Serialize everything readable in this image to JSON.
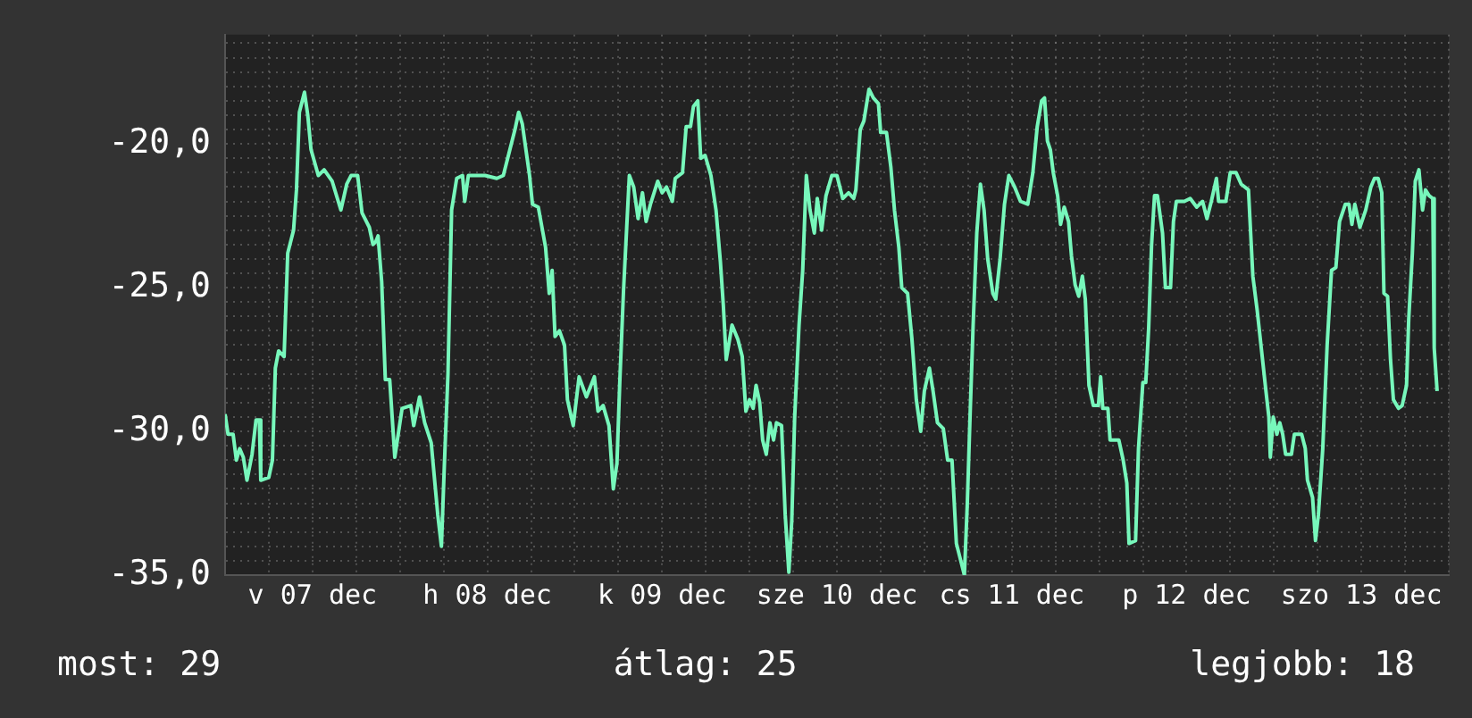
{
  "chart_data": {
    "type": "line",
    "legend": false,
    "grid": true,
    "marker": "none",
    "line_style": "solid",
    "xlim": [
      "--12-07T00:00",
      "--12-14T00:00"
    ],
    "xticks": [
      {
        "value": "--12-07T00:00",
        "label": null
      },
      {
        "value": "--12-07T06:00",
        "label": null
      },
      {
        "value": "--12-07T12:00",
        "label": "v 07 dec"
      },
      {
        "value": "--12-07T18:00",
        "label": null
      },
      {
        "value": "--12-08T00:00",
        "label": null
      },
      {
        "value": "--12-08T06:00",
        "label": null
      },
      {
        "value": "--12-08T12:00",
        "label": "h 08 dec"
      },
      {
        "value": "--12-08T18:00",
        "label": null
      },
      {
        "value": "--12-09T00:00",
        "label": null
      },
      {
        "value": "--12-09T06:00",
        "label": null
      },
      {
        "value": "--12-09T12:00",
        "label": "k 09 dec"
      },
      {
        "value": "--12-09T18:00",
        "label": null
      },
      {
        "value": "--12-10T00:00",
        "label": null
      },
      {
        "value": "--12-10T06:00",
        "label": null
      },
      {
        "value": "--12-10T12:00",
        "label": "sze 10 dec"
      },
      {
        "value": "--12-10T18:00",
        "label": null
      },
      {
        "value": "--12-11T00:00",
        "label": null
      },
      {
        "value": "--12-11T06:00",
        "label": null
      },
      {
        "value": "--12-11T12:00",
        "label": "cs 11 dec"
      },
      {
        "value": "--12-11T18:00",
        "label": null
      },
      {
        "value": "--12-12T00:00",
        "label": null
      },
      {
        "value": "--12-12T06:00",
        "label": null
      },
      {
        "value": "--12-12T12:00",
        "label": "p 12 dec"
      },
      {
        "value": "--12-12T18:00",
        "label": null
      },
      {
        "value": "--12-13T00:00",
        "label": null
      },
      {
        "value": "--12-13T06:00",
        "label": null
      },
      {
        "value": "--12-13T12:00",
        "label": "szo 13 dec"
      },
      {
        "value": "--12-13T18:00",
        "label": null
      },
      {
        "value": "--12-14T00:00",
        "label": null
      }
    ],
    "ylim": [
      -35,
      -16.2
    ],
    "yticks": [
      {
        "value": -35,
        "label": "-35,0"
      },
      {
        "value": -34.5,
        "label": null
      },
      {
        "value": -34,
        "label": null
      },
      {
        "value": -33.5,
        "label": null
      },
      {
        "value": -33,
        "label": null
      },
      {
        "value": -32.5,
        "label": null
      },
      {
        "value": -32,
        "label": null
      },
      {
        "value": -31.5,
        "label": null
      },
      {
        "value": -31,
        "label": null
      },
      {
        "value": -30.5,
        "label": null
      },
      {
        "value": -30,
        "label": "-30,0"
      },
      {
        "value": -29.5,
        "label": null
      },
      {
        "value": -29,
        "label": null
      },
      {
        "value": -28.5,
        "label": null
      },
      {
        "value": -28,
        "label": null
      },
      {
        "value": -27.5,
        "label": null
      },
      {
        "value": -27,
        "label": null
      },
      {
        "value": -26.5,
        "label": null
      },
      {
        "value": -26,
        "label": null
      },
      {
        "value": -25.5,
        "label": null
      },
      {
        "value": -25,
        "label": "-25,0"
      },
      {
        "value": -24.5,
        "label": null
      },
      {
        "value": -24,
        "label": null
      },
      {
        "value": -23.5,
        "label": null
      },
      {
        "value": -23,
        "label": null
      },
      {
        "value": -22.5,
        "label": null
      },
      {
        "value": -22,
        "label": null
      },
      {
        "value": -21.5,
        "label": null
      },
      {
        "value": -21,
        "label": null
      },
      {
        "value": -20.5,
        "label": null
      },
      {
        "value": -20,
        "label": "-20,0"
      },
      {
        "value": -19.5,
        "label": null
      },
      {
        "value": -19,
        "label": null
      },
      {
        "value": -18.5,
        "label": null
      },
      {
        "value": -18,
        "label": null
      },
      {
        "value": -17.5,
        "label": null
      },
      {
        "value": -17,
        "label": null
      },
      {
        "value": -16.5,
        "label": null
      }
    ],
    "annotations": [
      "most: 29",
      "átlag: 25",
      "legjobb: 18"
    ],
    "series": [
      {
        "color": "#77f7bb",
        "x": [
          "--12-07T00:00",
          "--12-07T00:24",
          "--12-07T01:06",
          "--12-07T01:33",
          "--12-07T02:00",
          "--12-07T02:30",
          "--12-07T03:00",
          "--12-07T03:42",
          "--12-07T04:15",
          "--12-07T04:42",
          "--12-07T04:54",
          "--12-07T06:00",
          "--12-07T06:30",
          "--12-07T06:54",
          "--12-07T07:21",
          "--12-07T08:06",
          "--12-07T08:36",
          "--12-07T09:24",
          "--12-07T09:48",
          "--12-07T10:12",
          "--12-07T10:54",
          "--12-07T11:21",
          "--12-07T11:48",
          "--12-07T12:48",
          "--12-07T13:36",
          "--12-07T14:42",
          "--12-07T15:54",
          "--12-07T16:42",
          "--12-07T17:18",
          "--12-07T18:12",
          "--12-07T18:48",
          "--12-07T19:48",
          "--12-07T20:18",
          "--12-07T20:42",
          "--12-07T21:00",
          "--12-07T21:30",
          "--12-07T22:00",
          "--12-07T22:36",
          "--12-07T23:18",
          "--12-08T00:18",
          "--12-08T01:30",
          "--12-08T01:54",
          "--12-08T02:42",
          "--12-08T03:24",
          "--12-08T04:18",
          "--12-08T05:12",
          "--12-08T05:42",
          "--12-08T06:06",
          "--12-08T06:36",
          "--12-08T07:06",
          "--12-08T07:48",
          "--12-08T08:36",
          "--12-08T08:54",
          "--12-08T09:24",
          "--12-08T10:30",
          "--12-08T11:42",
          "--12-08T13:18",
          "--12-08T14:12",
          "--12-08T15:06",
          "--12-08T15:48",
          "--12-08T16:18",
          "--12-08T16:48",
          "--12-08T17:48",
          "--12-08T18:12",
          "--12-08T19:00",
          "--12-08T20:00",
          "--12-08T20:30",
          "--12-08T20:54",
          "--12-08T21:18",
          "--12-08T21:54",
          "--12-08T22:36",
          "--12-08T23:00",
          "--12-08T23:48",
          "--12-09T00:36",
          "--12-09T01:36",
          "--12-09T02:42",
          "--12-09T03:12",
          "--12-09T03:54",
          "--12-09T04:42",
          "--12-09T05:18",
          "--12-09T05:48",
          "--12-09T06:12",
          "--12-09T06:42",
          "--12-09T07:30",
          "--12-09T08:06",
          "--12-09T08:42",
          "--12-09T09:18",
          "--12-09T09:48",
          "--12-09T10:24",
          "--12-09T11:24",
          "--12-09T12:00",
          "--12-09T12:36",
          "--12-09T13:24",
          "--12-09T13:48",
          "--12-09T14:48",
          "--12-09T15:18",
          "--12-09T15:54",
          "--12-09T16:18",
          "--12-09T16:54",
          "--12-09T17:18",
          "--12-09T17:54",
          "--12-09T18:42",
          "--12-09T19:24",
          "--12-09T20:00",
          "--12-09T20:24",
          "--12-09T20:48",
          "--12-09T21:36",
          "--12-09T22:24",
          "--12-09T23:00",
          "--12-09T23:30",
          "--12-10T00:00",
          "--12-10T00:30",
          "--12-10T00:54",
          "--12-10T01:24",
          "--12-10T01:48",
          "--12-10T02:18",
          "--12-10T02:48",
          "--12-10T03:18",
          "--12-10T03:42",
          "--12-10T04:24",
          "--12-10T04:54",
          "--12-10T05:24",
          "--12-10T05:48",
          "--12-10T06:12",
          "--12-10T06:48",
          "--12-10T07:18",
          "--12-10T07:48",
          "--12-10T08:18",
          "--12-10T08:54",
          "--12-10T09:18",
          "--12-10T09:54",
          "--12-10T10:30",
          "--12-10T11:18",
          "--12-10T12:00",
          "--12-10T12:48",
          "--12-10T13:36",
          "--12-10T14:18",
          "--12-10T14:36",
          "--12-10T15:12",
          "--12-10T15:42",
          "--12-10T16:24",
          "--12-10T17:00",
          "--12-10T17:42",
          "--12-10T18:00",
          "--12-10T18:48",
          "--12-10T19:24",
          "--12-10T19:54",
          "--12-10T20:30",
          "--12-10T20:54",
          "--12-10T21:42",
          "--12-10T22:18",
          "--12-10T22:54",
          "--12-10T23:30",
          "--12-11T00:00",
          "--12-11T00:42",
          "--12-11T01:12",
          "--12-11T01:48",
          "--12-11T02:36",
          "--12-11T03:12",
          "--12-11T03:48",
          "--12-11T04:24",
          "--12-11T05:06",
          "--12-11T05:30",
          "--12-11T05:54",
          "--12-11T06:18",
          "--12-11T06:42",
          "--12-11T07:12",
          "--12-11T07:42",
          "--12-11T08:12",
          "--12-11T08:42",
          "--12-11T09:24",
          "--12-11T09:48",
          "--12-11T10:24",
          "--12-11T11:00",
          "--12-11T11:36",
          "--12-11T12:24",
          "--12-11T13:12",
          "--12-11T14:12",
          "--12-11T14:54",
          "--12-11T15:30",
          "--12-11T16:06",
          "--12-11T16:30",
          "--12-11T16:54",
          "--12-11T17:18",
          "--12-11T17:42",
          "--12-11T18:18",
          "--12-11T18:42",
          "--12-11T19:12",
          "--12-11T19:48",
          "--12-11T20:12",
          "--12-11T20:42",
          "--12-11T21:12",
          "--12-11T21:42",
          "--12-11T22:06",
          "--12-11T22:36",
          "--12-11T23:12",
          "--12-11T23:54",
          "--12-12T00:12",
          "--12-12T00:30",
          "--12-12T01:12",
          "--12-12T01:30",
          "--12-12T02:42",
          "--12-12T03:18",
          "--12-12T03:48",
          "--12-12T04:06",
          "--12-12T05:00",
          "--12-12T05:24",
          "--12-12T06:00",
          "--12-12T06:24",
          "--12-12T06:48",
          "--12-12T07:12",
          "--12-12T07:36",
          "--12-12T08:00",
          "--12-12T08:42",
          "--12-12T09:06",
          "--12-12T09:48",
          "--12-12T10:12",
          "--12-12T10:36",
          "--12-12T11:42",
          "--12-12T12:30",
          "--12-12T13:24",
          "--12-12T14:12",
          "--12-12T14:48",
          "--12-12T15:24",
          "--12-12T16:06",
          "--12-12T16:24",
          "--12-12T17:24",
          "--12-12T18:00",
          "--12-12T18:48",
          "--12-12T19:30",
          "--12-12T20:30",
          "--12-12T21:06",
          "--12-12T21:42",
          "--12-12T22:18",
          "--12-12T22:54",
          "--12-12T23:18",
          "--12-12T23:30",
          "--12-12T23:54",
          "--12-13T00:24",
          "--12-13T00:48",
          "--12-13T01:12",
          "--12-13T01:36",
          "--12-13T02:24",
          "--12-13T02:48",
          "--12-13T03:48",
          "--12-13T04:18",
          "--12-13T04:36",
          "--12-13T05:18",
          "--12-13T05:42",
          "--12-13T06:06",
          "--12-13T06:42",
          "--12-13T07:18",
          "--12-13T07:54",
          "--12-13T08:30",
          "--12-13T09:00",
          "--12-13T09:48",
          "--12-13T10:18",
          "--12-13T10:42",
          "--12-13T11:06",
          "--12-13T11:48",
          "--12-13T12:36",
          "--12-13T13:18",
          "--12-13T13:48",
          "--12-13T14:18",
          "--12-13T14:48",
          "--12-13T15:06",
          "--12-13T15:36",
          "--12-13T16:00",
          "--12-13T16:24",
          "--12-13T17:06",
          "--12-13T17:36",
          "--12-13T18:12",
          "--12-13T18:30",
          "--12-13T19:00",
          "--12-13T19:24",
          "--12-13T19:54",
          "--12-13T20:24",
          "--12-13T20:48",
          "--12-13T21:18",
          "--12-13T21:48",
          "--12-13T22:00",
          "--12-13T22:24"
        ],
        "values": [
          -29.4,
          -30.1,
          -30.1,
          -31.0,
          -30.6,
          -30.9,
          -31.7,
          -30.8,
          -29.6,
          -29.6,
          -31.7,
          -31.6,
          -31.0,
          -27.8,
          -27.2,
          -27.4,
          -23.8,
          -23.0,
          -21.6,
          -18.9,
          -18.2,
          -19.0,
          -20.2,
          -21.1,
          -20.9,
          -21.3,
          -22.3,
          -21.4,
          -21.1,
          -21.1,
          -22.4,
          -22.9,
          -23.5,
          -23.4,
          -23.2,
          -24.8,
          -28.2,
          -28.2,
          -30.9,
          -29.2,
          -29.1,
          -29.8,
          -28.8,
          -29.7,
          -30.4,
          -32.9,
          -34.0,
          -31.2,
          -28.0,
          -22.3,
          -21.2,
          -21.1,
          -22.0,
          -21.1,
          -21.1,
          -21.1,
          -21.2,
          -21.1,
          -20.2,
          -19.5,
          -18.9,
          -19.3,
          -21.1,
          -22.1,
          -22.2,
          -23.6,
          -25.2,
          -24.4,
          -26.7,
          -26.5,
          -27.0,
          -28.9,
          -29.8,
          -28.1,
          -28.8,
          -28.1,
          -29.3,
          -29.1,
          -29.8,
          -32.0,
          -31.1,
          -28.2,
          -25.1,
          -21.1,
          -21.5,
          -22.6,
          -21.7,
          -22.7,
          -22.1,
          -21.3,
          -21.7,
          -21.5,
          -22.0,
          -21.2,
          -21.0,
          -19.4,
          -19.4,
          -18.7,
          -18.5,
          -20.5,
          -20.4,
          -21.1,
          -22.3,
          -24.1,
          -25.6,
          -27.5,
          -26.3,
          -26.8,
          -27.4,
          -29.3,
          -28.9,
          -29.2,
          -28.4,
          -29.0,
          -30.3,
          -30.8,
          -29.7,
          -30.3,
          -29.7,
          -29.8,
          -32.9,
          -34.9,
          -33.1,
          -29.5,
          -26.3,
          -24.4,
          -21.1,
          -22.3,
          -23.1,
          -21.9,
          -23.0,
          -21.8,
          -21.1,
          -21.1,
          -21.9,
          -21.7,
          -21.9,
          -21.6,
          -19.5,
          -19.2,
          -18.1,
          -18.4,
          -18.6,
          -19.6,
          -19.6,
          -20.8,
          -22.3,
          -23.6,
          -25.0,
          -25.2,
          -26.8,
          -28.9,
          -30.0,
          -28.6,
          -27.8,
          -28.6,
          -29.7,
          -29.9,
          -31.0,
          -31.0,
          -33.9,
          -34.6,
          -35.0,
          -32.5,
          -29.3,
          -26.3,
          -23.1,
          -21.4,
          -22.3,
          -24.0,
          -25.2,
          -25.4,
          -24.0,
          -22.1,
          -21.1,
          -21.5,
          -22.0,
          -22.1,
          -21.0,
          -19.4,
          -18.5,
          -18.4,
          -19.9,
          -20.2,
          -21.0,
          -21.8,
          -22.8,
          -22.2,
          -22.7,
          -23.9,
          -24.9,
          -25.3,
          -24.6,
          -25.4,
          -28.4,
          -29.1,
          -29.1,
          -28.1,
          -29.2,
          -29.2,
          -30.3,
          -30.3,
          -31.0,
          -31.8,
          -33.9,
          -33.8,
          -30.6,
          -28.3,
          -28.3,
          -26.4,
          -23.5,
          -21.8,
          -21.8,
          -23.1,
          -25.0,
          -25.0,
          -22.7,
          -22.0,
          -22.0,
          -21.9,
          -22.2,
          -22.0,
          -22.6,
          -22.0,
          -21.2,
          -22.0,
          -22.0,
          -21.0,
          -21.0,
          -21.4,
          -21.6,
          -24.6,
          -25.8,
          -27.2,
          -28.6,
          -29.5,
          -30.9,
          -29.5,
          -30.1,
          -29.7,
          -30.1,
          -30.8,
          -30.8,
          -30.1,
          -30.1,
          -30.6,
          -31.7,
          -32.3,
          -33.8,
          -32.9,
          -30.6,
          -27.0,
          -24.4,
          -24.3,
          -22.7,
          -22.1,
          -22.1,
          -22.8,
          -22.1,
          -22.9,
          -22.3,
          -21.5,
          -21.2,
          -21.2,
          -21.7,
          -25.2,
          -25.3,
          -27.5,
          -28.9,
          -29.2,
          -29.1,
          -28.4,
          -26.1,
          -23.8,
          -21.3,
          -20.9,
          -22.3,
          -21.6,
          -21.8,
          -21.9,
          -27.1,
          -28.6
        ]
      }
    ]
  }
}
